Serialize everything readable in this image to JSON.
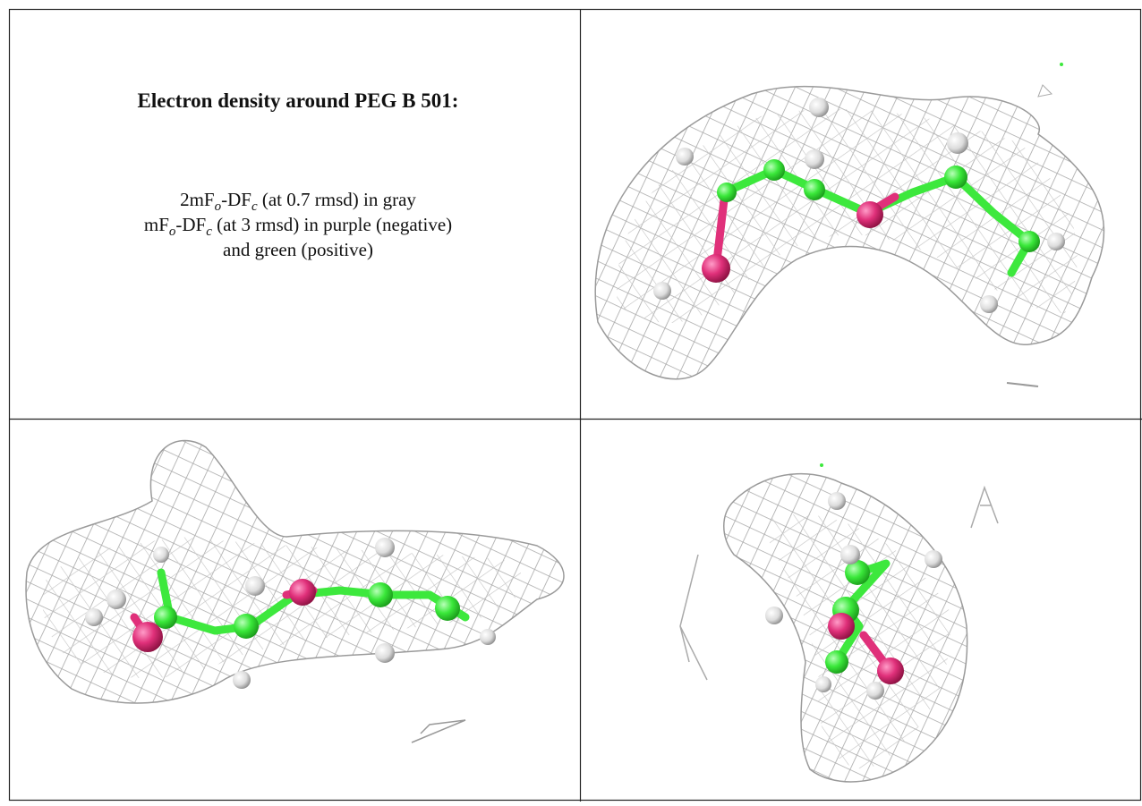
{
  "caption": {
    "title": "Electron density around PEG B 501:",
    "lines": [
      [
        {
          "text": "2mF"
        },
        {
          "text": "o",
          "sub": true
        },
        {
          "text": "-DF"
        },
        {
          "text": "c",
          "sub": true
        },
        {
          "text": " (at 0.7 rmsd) in gray"
        }
      ],
      [
        {
          "text": "mF"
        },
        {
          "text": "o",
          "sub": true
        },
        {
          "text": "-DF"
        },
        {
          "text": "c",
          "sub": true
        },
        {
          "text": " (at 3 rmsd) in purple (negative)"
        }
      ],
      [
        {
          "text": "and green (positive)"
        }
      ]
    ]
  }
}
